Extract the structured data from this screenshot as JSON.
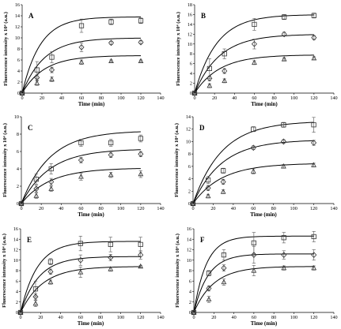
{
  "chart_data": [
    {
      "panel": "A",
      "type": "scatter",
      "xlabel": "Time (min)",
      "ylabel": "Fluorescence intensity x 10⁴ (a.u.)",
      "xlim": [
        0,
        140
      ],
      "xticks": [
        0,
        20,
        40,
        60,
        80,
        100,
        120,
        140
      ],
      "ylim": [
        0,
        16
      ],
      "yticks": [
        0,
        2,
        4,
        6,
        8,
        10,
        12,
        14,
        16
      ],
      "series": [
        {
          "marker": "square",
          "x": [
            0,
            15,
            30,
            60,
            90,
            120
          ],
          "y": [
            0,
            4.2,
            6.5,
            12.2,
            12.9,
            13.1
          ],
          "err": [
            0,
            1.5,
            1.0,
            1.2,
            0.5,
            0.5
          ],
          "fit_max": 13.8,
          "fit_k": 0.055
        },
        {
          "marker": "diamond",
          "x": [
            0,
            15,
            30,
            60,
            90,
            120
          ],
          "y": [
            0,
            2.8,
            4.2,
            8.3,
            9.1,
            9.2
          ],
          "err": [
            0,
            0.5,
            0.5,
            0.8,
            0.3,
            0.3
          ],
          "fit_max": 10.0,
          "fit_k": 0.045
        },
        {
          "marker": "triangle",
          "x": [
            0,
            15,
            30,
            60,
            90,
            120
          ],
          "y": [
            0,
            1.8,
            2.5,
            5.6,
            5.8,
            5.8
          ],
          "err": [
            0,
            0.4,
            0.4,
            0.4,
            0.2,
            0.2
          ],
          "fit_max": 6.8,
          "fit_k": 0.045
        }
      ]
    },
    {
      "panel": "B",
      "type": "scatter",
      "xlabel": "Time (min)",
      "ylabel": "Fluorescence intensity x 10⁴ (a.u.)",
      "xlim": [
        0,
        140
      ],
      "xticks": [
        0,
        20,
        40,
        60,
        80,
        100,
        120,
        140
      ],
      "ylim": [
        0,
        18
      ],
      "yticks": [
        0,
        2,
        4,
        6,
        8,
        10,
        12,
        14,
        16,
        18
      ],
      "series": [
        {
          "marker": "square",
          "x": [
            0,
            15,
            30,
            60,
            90,
            120
          ],
          "y": [
            0,
            5.0,
            8.0,
            14.0,
            15.5,
            15.8
          ],
          "err": [
            0,
            2.0,
            1.0,
            1.2,
            0.5,
            0.5
          ],
          "fit_max": 16.0,
          "fit_k": 0.045
        },
        {
          "marker": "diamond",
          "x": [
            0,
            15,
            30,
            60,
            90,
            120
          ],
          "y": [
            0,
            3.0,
            4.5,
            10.0,
            12.0,
            11.3
          ],
          "err": [
            0,
            0.5,
            0.5,
            1.0,
            0.4,
            0.4
          ],
          "fit_max": 12.0,
          "fit_k": 0.04
        },
        {
          "marker": "triangle",
          "x": [
            0,
            15,
            30,
            60,
            90,
            120
          ],
          "y": [
            0,
            1.5,
            2.5,
            6.2,
            6.9,
            7.1
          ],
          "err": [
            0,
            0.4,
            0.4,
            0.4,
            0.3,
            0.3
          ],
          "fit_max": 7.8,
          "fit_k": 0.04
        }
      ]
    },
    {
      "panel": "C",
      "type": "scatter",
      "xlabel": "Time (min)",
      "ylabel": "Fluorescence intensity x 10⁴ (a.u.)",
      "xlim": [
        0,
        140
      ],
      "xticks": [
        0,
        20,
        40,
        60,
        80,
        100,
        120,
        140
      ],
      "ylim": [
        0,
        10
      ],
      "yticks": [
        0,
        2,
        4,
        6,
        8,
        10
      ],
      "series": [
        {
          "marker": "square",
          "x": [
            0,
            15,
            30,
            60,
            90,
            120
          ],
          "y": [
            0,
            2.8,
            4.0,
            7.0,
            7.0,
            7.5
          ],
          "err": [
            0,
            0.6,
            0.6,
            0.4,
            0.4,
            0.4
          ],
          "fit_max": 8.4,
          "fit_k": 0.035
        },
        {
          "marker": "diamond",
          "x": [
            0,
            15,
            30,
            60,
            90,
            120
          ],
          "y": [
            0,
            1.7,
            2.5,
            5.0,
            5.6,
            5.7
          ],
          "err": [
            0,
            0.4,
            0.4,
            0.3,
            0.3,
            0.3
          ],
          "fit_max": 6.3,
          "fit_k": 0.035
        },
        {
          "marker": "triangle",
          "x": [
            0,
            15,
            30,
            60,
            90,
            120
          ],
          "y": [
            0,
            0.9,
            1.7,
            3.1,
            3.3,
            3.4
          ],
          "err": [
            0,
            0.3,
            0.3,
            0.4,
            0.3,
            0.4
          ],
          "fit_max": 4.1,
          "fit_k": 0.035
        }
      ]
    },
    {
      "panel": "D",
      "type": "scatter",
      "xlabel": "Time (min)",
      "ylabel": "Fluorescence intensity x 10⁴ (a.u.)",
      "xlim": [
        0,
        140
      ],
      "xticks": [
        0,
        20,
        40,
        60,
        80,
        100,
        120,
        140
      ],
      "ylim": [
        0,
        14
      ],
      "yticks": [
        0,
        2,
        4,
        6,
        8,
        10,
        12,
        14
      ],
      "series": [
        {
          "marker": "square",
          "x": [
            0,
            15,
            30,
            60,
            90,
            120
          ],
          "y": [
            0,
            3.8,
            5.3,
            12.0,
            12.7,
            12.7
          ],
          "err": [
            0,
            0.6,
            0.4,
            0.4,
            0.4,
            1.2
          ],
          "fit_max": 13.3,
          "fit_k": 0.035
        },
        {
          "marker": "diamond",
          "x": [
            0,
            15,
            30,
            60,
            90,
            120
          ],
          "y": [
            0,
            2.5,
            3.5,
            9.0,
            10.0,
            9.8
          ],
          "err": [
            0,
            0.4,
            0.4,
            0.3,
            0.3,
            0.4
          ],
          "fit_max": 10.3,
          "fit_k": 0.035
        },
        {
          "marker": "triangle",
          "x": [
            0,
            15,
            30,
            60,
            90,
            120
          ],
          "y": [
            0,
            1.2,
            1.9,
            5.2,
            6.0,
            6.2
          ],
          "err": [
            0,
            0.3,
            0.3,
            0.4,
            0.3,
            0.3
          ],
          "fit_max": 6.5,
          "fit_k": 0.035
        }
      ]
    },
    {
      "panel": "E",
      "type": "scatter",
      "xlabel": "Time (min)",
      "ylabel": "Fluorescence intensity x 10⁴ (a.u.)",
      "xlim": [
        0,
        140
      ],
      "xticks": [
        0,
        20,
        40,
        60,
        80,
        100,
        120,
        140
      ],
      "ylim": [
        0,
        16
      ],
      "yticks": [
        0,
        2,
        4,
        6,
        8,
        10,
        12,
        14,
        16
      ],
      "series": [
        {
          "marker": "square",
          "x": [
            0,
            15,
            30,
            60,
            90,
            120
          ],
          "y": [
            0,
            4.5,
            9.7,
            13.2,
            13.0,
            13.0
          ],
          "err": [
            0,
            1.5,
            0.6,
            1.4,
            1.4,
            1.4
          ],
          "fit_max": 13.6,
          "fit_k": 0.06
        },
        {
          "marker": "diamond",
          "x": [
            0,
            15,
            30,
            60,
            90,
            120
          ],
          "y": [
            0,
            3.0,
            7.8,
            10.0,
            10.5,
            11.0
          ],
          "err": [
            0,
            0.6,
            0.5,
            1.0,
            0.6,
            0.8
          ],
          "fit_max": 10.7,
          "fit_k": 0.055
        },
        {
          "marker": "triangle",
          "x": [
            0,
            15,
            30,
            60,
            90,
            120
          ],
          "y": [
            0,
            1.7,
            5.8,
            7.7,
            8.3,
            8.8
          ],
          "err": [
            0,
            0.6,
            0.4,
            1.0,
            0.4,
            0.2
          ],
          "fit_max": 8.8,
          "fit_k": 0.045
        }
      ]
    },
    {
      "panel": "F",
      "type": "scatter",
      "xlabel": "Time (min)",
      "ylabel": "Fluorescence intensity x 10⁴ (a.u.)",
      "xlim": [
        0,
        140
      ],
      "xticks": [
        0,
        20,
        40,
        60,
        80,
        100,
        120,
        140
      ],
      "ylim": [
        0,
        16
      ],
      "yticks": [
        0,
        2,
        4,
        6,
        8,
        10,
        12,
        14,
        16
      ],
      "series": [
        {
          "marker": "square",
          "x": [
            0,
            15,
            30,
            60,
            90,
            120
          ],
          "y": [
            0,
            7.5,
            11.0,
            13.3,
            14.3,
            14.5
          ],
          "err": [
            0,
            0.5,
            1.0,
            2.0,
            1.0,
            1.0
          ],
          "fit_max": 14.6,
          "fit_k": 0.08
        },
        {
          "marker": "diamond",
          "x": [
            0,
            15,
            30,
            60,
            90,
            120
          ],
          "y": [
            0,
            4.6,
            8.5,
            11.0,
            11.0,
            11.0
          ],
          "err": [
            0,
            0.5,
            0.6,
            1.6,
            0.8,
            1.0
          ],
          "fit_max": 11.2,
          "fit_k": 0.07
        },
        {
          "marker": "triangle",
          "x": [
            0,
            15,
            30,
            60,
            90,
            120
          ],
          "y": [
            0,
            2.5,
            5.8,
            8.0,
            8.5,
            8.5
          ],
          "err": [
            0,
            0.6,
            0.6,
            1.0,
            0.4,
            0.4
          ],
          "fit_max": 8.8,
          "fit_k": 0.05
        }
      ]
    }
  ]
}
